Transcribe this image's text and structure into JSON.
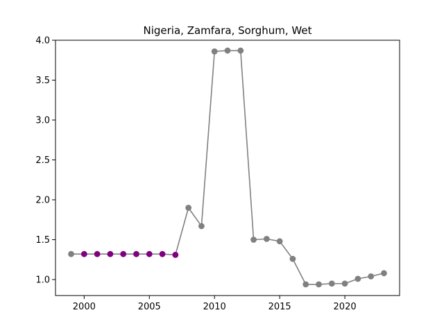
{
  "chart_data": {
    "type": "line",
    "title": "Nigeria, Zamfara, Sorghum, Wet",
    "xlabel": "",
    "ylabel": "",
    "xlim": [
      1997.8,
      2024.2
    ],
    "ylim": [
      0.8,
      4.0
    ],
    "x_ticks": [
      2000,
      2005,
      2010,
      2015,
      2020
    ],
    "y_ticks": [
      1.0,
      1.5,
      2.0,
      2.5,
      3.0,
      3.5,
      4.0
    ],
    "x_tick_labels": [
      "2000",
      "2005",
      "2010",
      "2015",
      "2020"
    ],
    "y_tick_labels": [
      "1.0",
      "1.5",
      "2.0",
      "2.5",
      "3.0",
      "3.5",
      "4.0"
    ],
    "grid": false,
    "line_color": "#808080",
    "highlight_color": "#800080",
    "series": [
      {
        "x": [
          1999,
          2000,
          2001,
          2002,
          2003,
          2004,
          2005,
          2006,
          2007,
          2008,
          2009,
          2010,
          2011,
          2012,
          2013,
          2014,
          2015,
          2016,
          2017,
          2018,
          2019,
          2020,
          2021,
          2022,
          2023
        ],
        "y": [
          1.32,
          1.32,
          1.32,
          1.32,
          1.32,
          1.32,
          1.32,
          1.32,
          1.31,
          1.9,
          1.67,
          3.86,
          3.87,
          3.87,
          1.5,
          1.51,
          1.48,
          1.26,
          0.94,
          0.94,
          0.95,
          0.95,
          1.01,
          1.04,
          1.08
        ],
        "highlighted": [
          false,
          true,
          true,
          true,
          true,
          true,
          true,
          true,
          true,
          false,
          false,
          false,
          false,
          false,
          false,
          false,
          false,
          false,
          false,
          false,
          false,
          false,
          false,
          false,
          false
        ]
      }
    ]
  }
}
